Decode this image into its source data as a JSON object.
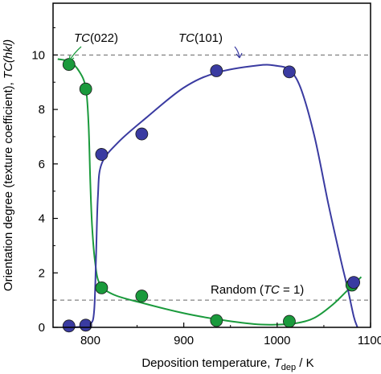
{
  "chart_data": {
    "type": "scatter",
    "xlabel": {
      "prefix": "Deposition temperature, ",
      "var": "T",
      "sub": "dep",
      "suffix": " / K"
    },
    "ylabel": {
      "prefix": "Orientation degree (texture coefficient), ",
      "var": "TC",
      "arg": "(hkl)"
    },
    "xlim": [
      760,
      1100
    ],
    "ylim": [
      0,
      11.9
    ],
    "xticks": [
      800,
      900,
      1000,
      1100
    ],
    "yticks": [
      0,
      2,
      4,
      6,
      8,
      10
    ],
    "reference_lines": [
      {
        "y": 10,
        "style": "dashed"
      },
      {
        "y": 1,
        "style": "dashed",
        "label_prefix": "Random (",
        "label_var": "TC",
        "label_suffix": " = 1)"
      }
    ],
    "series": [
      {
        "name_var": "TC",
        "name_arg": "(022)",
        "color": "#1a9a3c",
        "points": [
          [
            777,
            9.65
          ],
          [
            795,
            8.75
          ],
          [
            812,
            1.45
          ],
          [
            855,
            1.15
          ],
          [
            935,
            0.25
          ],
          [
            1013,
            0.22
          ],
          [
            1080,
            1.55
          ]
        ],
        "curve": [
          [
            765,
            9.85
          ],
          [
            778,
            9.75
          ],
          [
            788,
            9.4
          ],
          [
            795,
            8.8
          ],
          [
            798,
            7.5
          ],
          [
            800,
            5.2
          ],
          [
            802,
            3.6
          ],
          [
            805,
            2.4
          ],
          [
            810,
            1.6
          ],
          [
            825,
            1.2
          ],
          [
            855,
            0.9
          ],
          [
            900,
            0.52
          ],
          [
            935,
            0.3
          ],
          [
            975,
            0.12
          ],
          [
            1000,
            0.1
          ],
          [
            1020,
            0.15
          ],
          [
            1040,
            0.35
          ],
          [
            1060,
            0.85
          ],
          [
            1075,
            1.35
          ],
          [
            1090,
            1.85
          ]
        ]
      },
      {
        "name_var": "TC",
        "name_arg": "(101)",
        "color": "#3a3ba1",
        "points": [
          [
            777,
            0.05
          ],
          [
            795,
            0.08
          ],
          [
            812,
            6.35
          ],
          [
            855,
            7.1
          ],
          [
            935,
            9.42
          ],
          [
            1013,
            9.38
          ],
          [
            1082,
            1.65
          ]
        ],
        "curve": [
          [
            777,
            0.0
          ],
          [
            790,
            0.02
          ],
          [
            800,
            0.12
          ],
          [
            804,
            0.6
          ],
          [
            806,
            2.5
          ],
          [
            808,
            4.8
          ],
          [
            812,
            6.0
          ],
          [
            830,
            6.8
          ],
          [
            860,
            7.7
          ],
          [
            900,
            8.8
          ],
          [
            935,
            9.35
          ],
          [
            980,
            9.62
          ],
          [
            1000,
            9.6
          ],
          [
            1013,
            9.45
          ],
          [
            1025,
            8.8
          ],
          [
            1040,
            7.0
          ],
          [
            1055,
            4.5
          ],
          [
            1068,
            2.5
          ],
          [
            1075,
            1.5
          ],
          [
            1082,
            0.4
          ],
          [
            1086,
            0.0
          ]
        ]
      }
    ]
  }
}
